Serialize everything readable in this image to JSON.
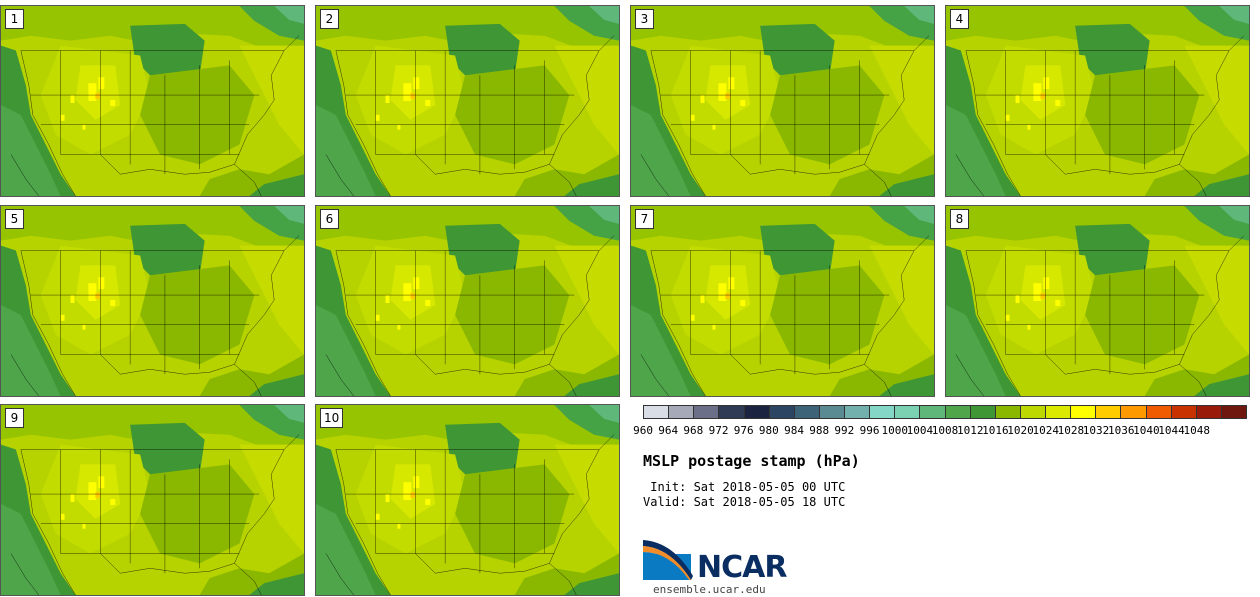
{
  "panels": [
    {
      "label": "1"
    },
    {
      "label": "2"
    },
    {
      "label": "3"
    },
    {
      "label": "4"
    },
    {
      "label": "5"
    },
    {
      "label": "6"
    },
    {
      "label": "7"
    },
    {
      "label": "8"
    },
    {
      "label": "9"
    },
    {
      "label": "10"
    }
  ],
  "colorbar": {
    "ticks": [
      "960",
      "964",
      "968",
      "972",
      "976",
      "980",
      "984",
      "988",
      "992",
      "996",
      "1000",
      "1004",
      "1008",
      "1012",
      "1016",
      "1020",
      "1024",
      "1028",
      "1032",
      "1036",
      "1040",
      "1044",
      "1048"
    ],
    "colors": [
      "#d9dde6",
      "#a5a9b8",
      "#6b7088",
      "#2f3a55",
      "#1a2440",
      "#2b4563",
      "#3c6378",
      "#5b8b92",
      "#72b0ad",
      "#84d6c6",
      "#7ad2b3",
      "#5fb879",
      "#4ea54a",
      "#3e9634",
      "#8ab800",
      "#bcd800",
      "#dbe800",
      "#ffff00",
      "#ffcc00",
      "#ff9900",
      "#f05a00",
      "#c83200",
      "#9a1a0a",
      "#6e1810"
    ]
  },
  "title": "MSLP postage stamp (hPa)",
  "init": " Init: Sat 2018-05-05 00 UTC",
  "valid": "Valid: Sat 2018-05-05 18 UTC",
  "logo": {
    "text": "NCAR",
    "url": "ensemble.ucar.edu"
  }
}
